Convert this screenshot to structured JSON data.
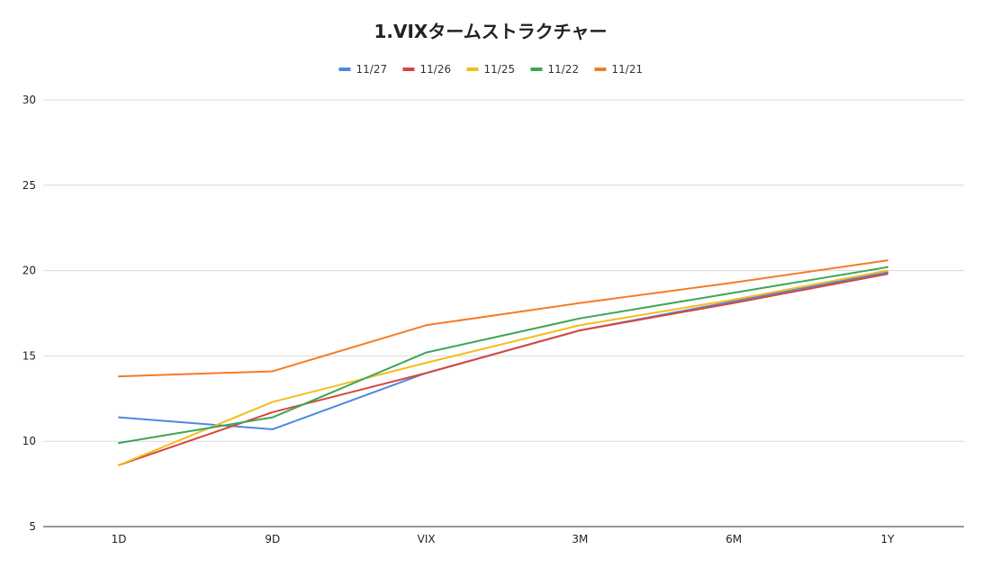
{
  "chart_data": {
    "type": "line",
    "title": "1.VIXタームストラクチャー",
    "xlabel": "",
    "ylabel": "",
    "categories": [
      "1D",
      "9D",
      "VIX",
      "3M",
      "6M",
      "1Y"
    ],
    "ylim": [
      5,
      30
    ],
    "yticks": [
      30,
      25,
      20,
      15,
      10,
      5
    ],
    "grid": true,
    "legend_position": "top",
    "series": [
      {
        "name": "11/27",
        "color": "#4e86e4",
        "values": [
          11.4,
          10.7,
          14.0,
          16.5,
          18.2,
          19.9
        ]
      },
      {
        "name": "11/26",
        "color": "#d9463d",
        "values": [
          8.6,
          11.7,
          14.0,
          16.5,
          18.1,
          19.8
        ]
      },
      {
        "name": "11/25",
        "color": "#f4bd1c",
        "values": [
          8.6,
          12.3,
          14.6,
          16.8,
          18.3,
          20.0
        ]
      },
      {
        "name": "11/22",
        "color": "#3ea655",
        "values": [
          9.9,
          11.4,
          15.2,
          17.2,
          18.7,
          20.2
        ]
      },
      {
        "name": "11/21",
        "color": "#f57c26",
        "values": [
          13.8,
          14.1,
          16.8,
          18.1,
          19.3,
          20.6
        ]
      }
    ]
  }
}
